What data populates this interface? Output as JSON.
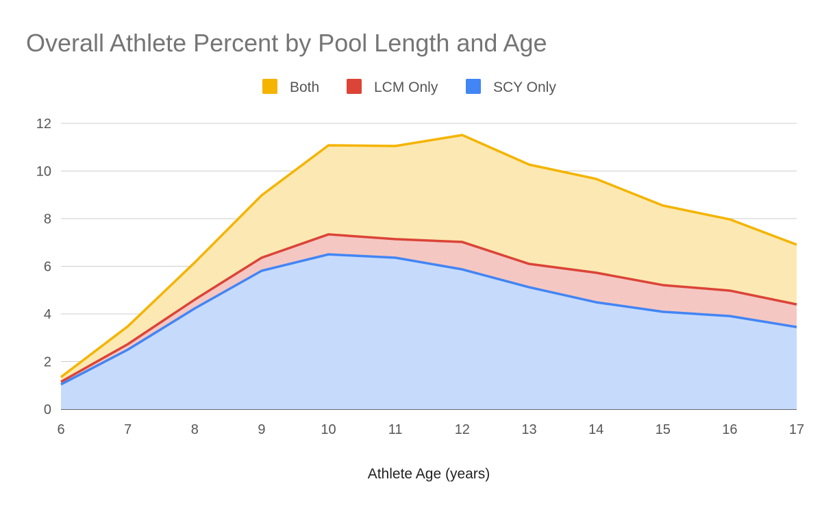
{
  "chart_data": {
    "type": "area",
    "stacked": true,
    "title": "Overall Athlete Percent by Pool Length and Age",
    "xlabel": "Athlete Age (years)",
    "ylabel": "",
    "x": [
      6,
      7,
      8,
      9,
      10,
      11,
      12,
      13,
      14,
      15,
      16,
      17
    ],
    "ylim": [
      0,
      12
    ],
    "yticks": [
      0,
      2,
      4,
      6,
      8,
      10,
      12
    ],
    "grid": true,
    "legend_position": "top",
    "series": [
      {
        "name": "SCY Only",
        "color": "#4285f4",
        "fill": "#c6dafc",
        "values": [
          1.04,
          2.5,
          4.23,
          5.81,
          6.5,
          6.36,
          5.87,
          5.12,
          4.49,
          4.09,
          3.91,
          3.45
        ]
      },
      {
        "name": "LCM Only",
        "color": "#db4437",
        "fill": "#f4c7c3",
        "values": [
          0.11,
          0.23,
          0.37,
          0.55,
          0.84,
          0.78,
          1.15,
          0.98,
          1.24,
          1.12,
          1.07,
          0.95
        ]
      },
      {
        "name": "Both",
        "color": "#f4b400",
        "fill": "#fce8b2",
        "values": [
          0.2,
          0.75,
          1.56,
          2.62,
          3.74,
          3.91,
          4.49,
          4.17,
          3.94,
          3.34,
          2.99,
          2.51
        ]
      }
    ],
    "legend_order": [
      "Both",
      "LCM Only",
      "SCY Only"
    ]
  }
}
